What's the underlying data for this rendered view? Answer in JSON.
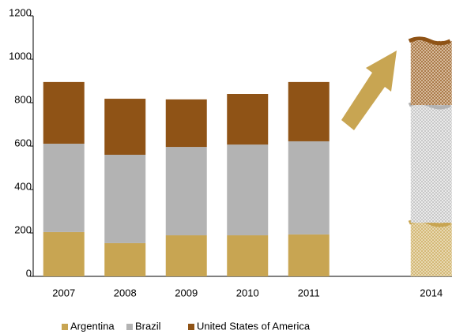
{
  "chart_data": {
    "type": "bar",
    "stacked": true,
    "categories": [
      "2007",
      "2008",
      "2009",
      "2010",
      "2011",
      null,
      "2014"
    ],
    "series": [
      {
        "name": "Argentina",
        "color": "#c8a552",
        "values": [
          204,
          153,
          189,
          189,
          193,
          null,
          247
        ]
      },
      {
        "name": "Brazil",
        "color": "#b3b3b3",
        "values": [
          407,
          407,
          407,
          418,
          429,
          null,
          542
        ]
      },
      {
        "name": "United States of America",
        "color": "#8f5316",
        "values": [
          284,
          258,
          219,
          233,
          273,
          null,
          295
        ]
      }
    ],
    "ylim": [
      0,
      1200
    ],
    "yticks": [
      0,
      200,
      400,
      600,
      800,
      1000,
      1200
    ],
    "grid": false,
    "legend": "bottom"
  }
}
